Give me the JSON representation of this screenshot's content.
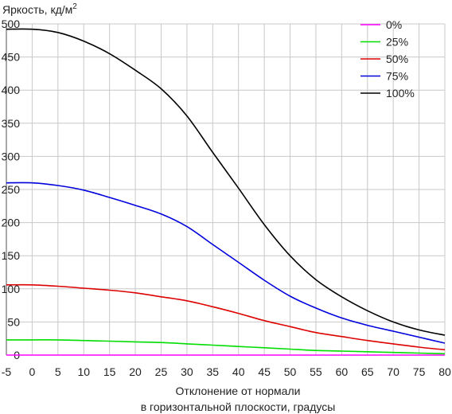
{
  "chart_data": {
    "type": "line",
    "title": "",
    "ylabel": "Яркость, кд/м",
    "ylabel_sup": "2",
    "xlabel_line1": "Отклонение от нормали",
    "xlabel_line2": "в горизонтальной плоскости, градусы",
    "xlim": [
      -5,
      80
    ],
    "ylim": [
      0,
      500
    ],
    "xticks": [
      "-5",
      "0",
      "5",
      "10",
      "15",
      "20",
      "25",
      "30",
      "35",
      "40",
      "45",
      "50",
      "55",
      "60",
      "65",
      "70",
      "75",
      "80"
    ],
    "yticks": [
      "0",
      "50",
      "100",
      "150",
      "200",
      "250",
      "300",
      "350",
      "400",
      "450",
      "500"
    ],
    "grid": "vertical-and-horizontal",
    "legend_position": "top-right",
    "x": [
      -5,
      0,
      5,
      10,
      15,
      20,
      25,
      30,
      35,
      40,
      45,
      50,
      55,
      60,
      65,
      70,
      75,
      80
    ],
    "series": [
      {
        "name": "0%",
        "color": "#ff00ff",
        "values": [
          0,
          0,
          0,
          0,
          0,
          0,
          0,
          0,
          0,
          0,
          0,
          0,
          0,
          0,
          0,
          0,
          0,
          0
        ]
      },
      {
        "name": "25%",
        "color": "#00dd00",
        "values": [
          23,
          23,
          23,
          22,
          21,
          20,
          19,
          17,
          15,
          13,
          11,
          9,
          7,
          6,
          5,
          4,
          3,
          2
        ]
      },
      {
        "name": "50%",
        "color": "#dd0000",
        "values": [
          106,
          106,
          104,
          101,
          98,
          94,
          88,
          82,
          73,
          63,
          52,
          43,
          34,
          28,
          22,
          17,
          12,
          8
        ]
      },
      {
        "name": "75%",
        "color": "#0000dd",
        "values": [
          260,
          260,
          256,
          249,
          238,
          226,
          213,
          194,
          167,
          140,
          113,
          89,
          71,
          56,
          45,
          36,
          27,
          18
        ]
      },
      {
        "name": "100%",
        "color": "#000000",
        "values": [
          492,
          492,
          487,
          474,
          455,
          430,
          402,
          361,
          306,
          252,
          197,
          150,
          114,
          88,
          67,
          50,
          38,
          30
        ]
      }
    ]
  }
}
